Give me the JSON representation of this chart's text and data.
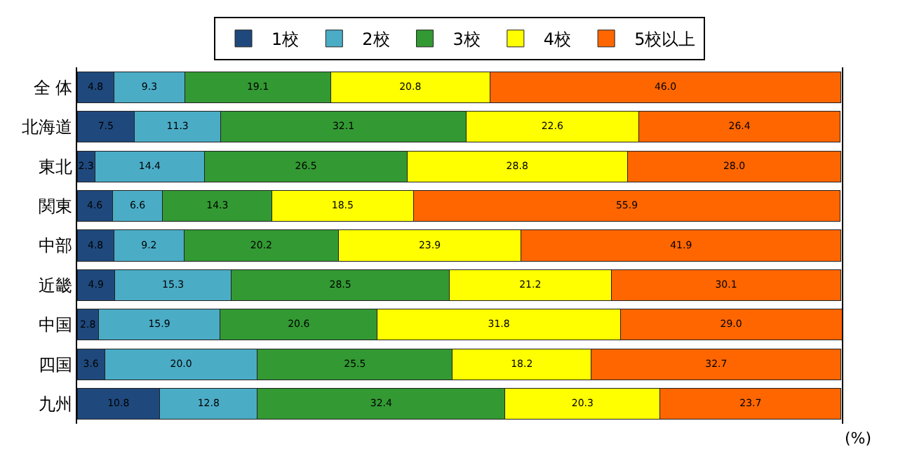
{
  "chart_data": {
    "type": "bar",
    "orientation": "horizontal",
    "stacked": true,
    "legend": "top",
    "tick_labels": "y",
    "categories": [
      "全 体",
      "北海道",
      "東北",
      "関東",
      "中部",
      "近畿",
      "中国",
      "四国",
      "九州"
    ],
    "xlim": [
      0,
      100.1
    ],
    "series": [
      {
        "name": "1校",
        "color": "#1f497d",
        "values": [
          4.8,
          7.5,
          2.3,
          4.6,
          4.8,
          4.9,
          2.8,
          3.6,
          10.8
        ],
        "value_labels": [
          "4.8",
          "7.5",
          "2.3",
          "4.6",
          "4.8",
          "4.9",
          "2.8",
          "3.6",
          "10.8"
        ]
      },
      {
        "name": "2校",
        "color": "#4bacc6",
        "values": [
          9.3,
          11.3,
          14.4,
          6.6,
          9.2,
          15.3,
          15.9,
          20.0,
          12.8
        ],
        "value_labels": [
          "9.3",
          "11.3",
          "14.4",
          "6.6",
          "9.2",
          "15.3",
          "15.9",
          "20.0",
          "12.8"
        ]
      },
      {
        "name": "3校",
        "color": "#339933",
        "values": [
          19.1,
          32.1,
          26.5,
          14.3,
          20.2,
          28.5,
          20.6,
          25.5,
          32.4
        ],
        "value_labels": [
          "19.1",
          "32.1",
          "26.5",
          "14.3",
          "20.2",
          "28.5",
          "20.6",
          "25.5",
          "32.4"
        ]
      },
      {
        "name": "4校",
        "color": "#ffff00",
        "values": [
          20.8,
          22.6,
          28.8,
          18.5,
          23.9,
          21.2,
          31.8,
          18.2,
          20.3
        ],
        "value_labels": [
          "20.8",
          "22.6",
          "28.8",
          "18.5",
          "23.9",
          "21.2",
          "31.8",
          "18.2",
          "20.3"
        ]
      },
      {
        "name": "5校以上",
        "color": "#ff6600",
        "values": [
          46.0,
          26.4,
          28.0,
          55.9,
          41.9,
          30.1,
          29.0,
          32.7,
          23.7
        ],
        "value_labels": [
          "46.0",
          "26.4",
          "28.0",
          "55.9",
          "41.9",
          "30.1",
          "29.0",
          "32.7",
          "23.7"
        ]
      }
    ],
    "annotations": [
      "(%)"
    ]
  }
}
